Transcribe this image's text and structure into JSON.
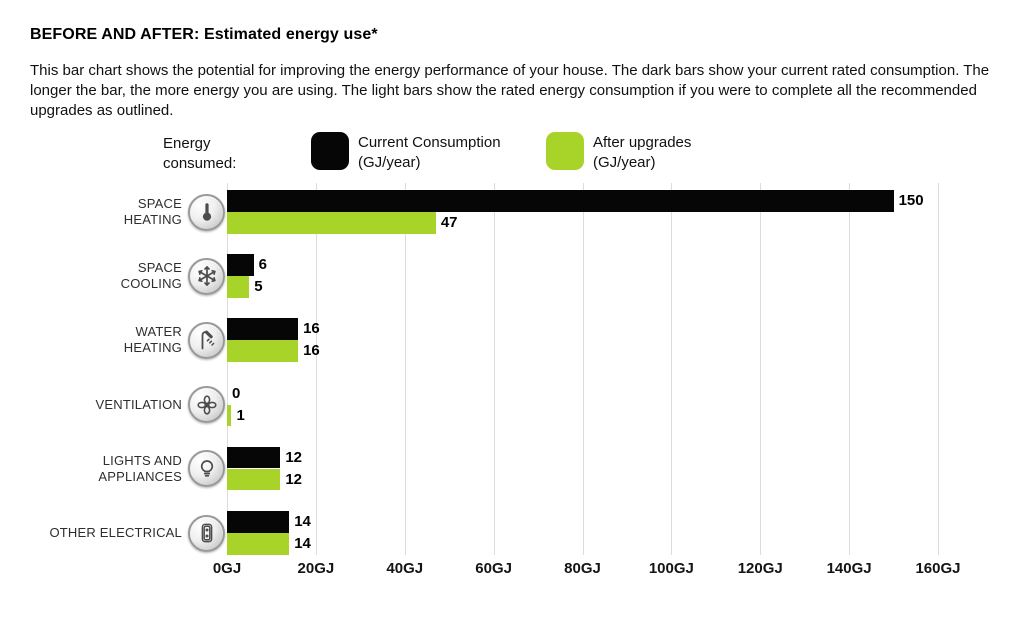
{
  "title": "BEFORE AND AFTER: Estimated energy use*",
  "description": "This bar chart shows the potential for improving the energy performance of your house. The dark bars show your current rated consumption. The longer the bar, the more energy you are using. The light bars show the rated energy consumption if you were to complete all the recommended upgrades as outlined.",
  "legend": {
    "label": "Energy consumed:",
    "items": [
      {
        "label": "Current Consumption",
        "sublabel": "(GJ/year)",
        "color": "#060606"
      },
      {
        "label": "After upgrades",
        "sublabel": "(GJ/year)",
        "color": "#a8d42a"
      }
    ]
  },
  "chart_data": {
    "type": "bar",
    "orientation": "horizontal",
    "title": "BEFORE AND AFTER: Estimated energy use*",
    "categories": [
      {
        "label": "SPACE HEATING",
        "label_lines": "SPACE\nHEATING",
        "icon": "thermometer"
      },
      {
        "label": "SPACE COOLING",
        "label_lines": "SPACE\nCOOLING",
        "icon": "snowflake"
      },
      {
        "label": "WATER HEATING",
        "label_lines": "WATER\nHEATING",
        "icon": "shower"
      },
      {
        "label": "VENTILATION",
        "label_lines": "VENTILATION",
        "icon": "fan"
      },
      {
        "label": "LIGHTS AND APPLIANCES",
        "label_lines": "LIGHTS AND\nAPPLIANCES",
        "icon": "lightbulb"
      },
      {
        "label": "OTHER ELECTRICAL",
        "label_lines": "OTHER ELECTRICAL",
        "icon": "outlet"
      }
    ],
    "series": [
      {
        "name": "Current Consumption (GJ/year)",
        "color": "#060606",
        "values": [
          150,
          6,
          16,
          0,
          12,
          14
        ]
      },
      {
        "name": "After upgrades (GJ/year)",
        "color": "#a8d42a",
        "values": [
          47,
          5,
          16,
          1,
          12,
          14
        ]
      }
    ],
    "x_ticks": [
      "0GJ",
      "20GJ",
      "40GJ",
      "60GJ",
      "80GJ",
      "100GJ",
      "120GJ",
      "140GJ",
      "160GJ"
    ],
    "xlim": [
      0,
      160
    ],
    "x_unit": "GJ",
    "grid": "vertical",
    "gridline_color": "#dcdcdc",
    "legend_position": "top"
  }
}
